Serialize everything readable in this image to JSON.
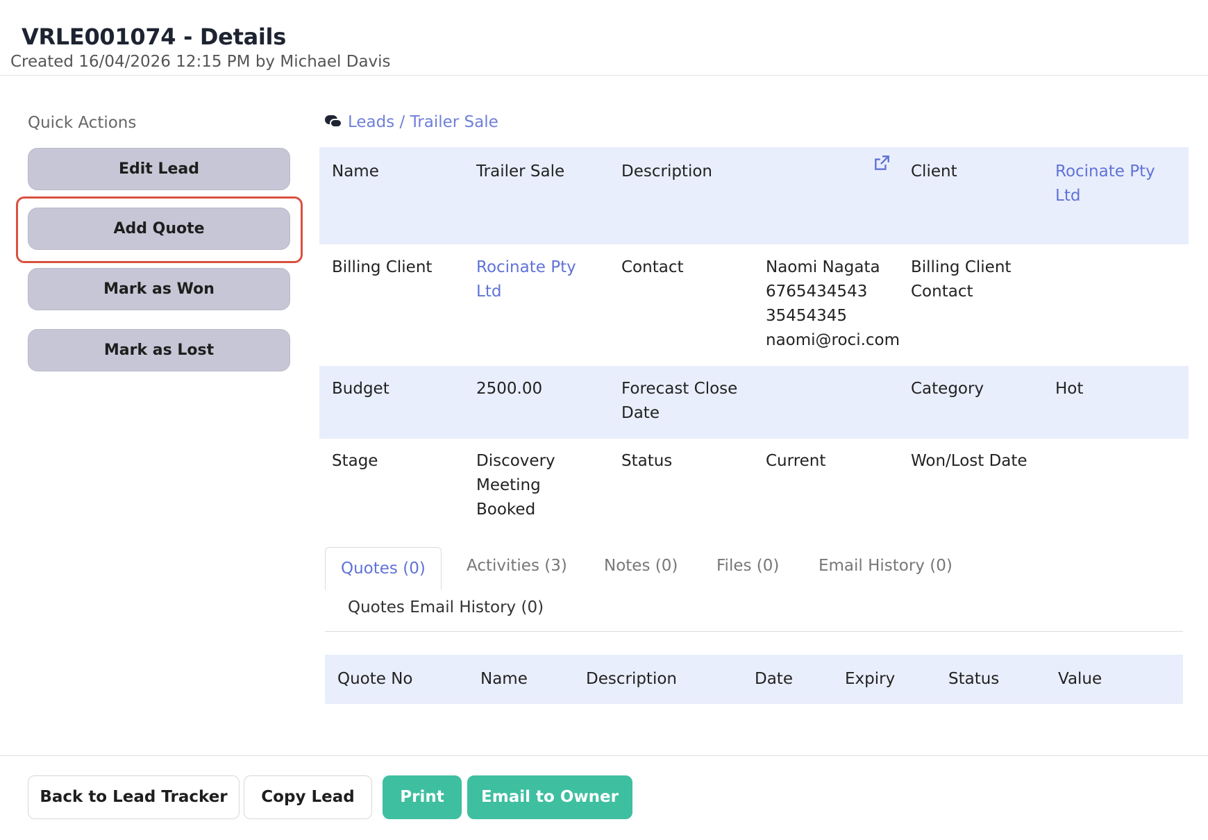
{
  "header": {
    "title": "VRLE001074 - Details",
    "subtitle": "Created 16/04/2026 12:15 PM by Michael Davis"
  },
  "quick_actions": {
    "heading": "Quick Actions",
    "buttons": [
      "Edit Lead",
      "Add Quote",
      "Mark as Won",
      "Mark as Lost"
    ],
    "highlighted": "Add Quote"
  },
  "breadcrumb": {
    "icon": "comments-icon",
    "text": "Leads / Trailer Sale"
  },
  "details": {
    "name_label": "Name",
    "name_value": "Trailer Sale",
    "description_label": "Description",
    "client_label": "Client",
    "client_value": "Rocinate Pty Ltd",
    "billing_client_label": "Billing Client",
    "billing_client_value": "Rocinate Pty Ltd",
    "contact_label": "Contact",
    "contact_name": "Naomi Nagata",
    "contact_phone1": "6765434543",
    "contact_phone2": "35454345",
    "contact_email": "naomi@roci.com",
    "billing_contact_label": "Billing Client Contact",
    "budget_label": "Budget",
    "budget_value": "2500.00",
    "forecast_label": "Forecast Close Date",
    "category_label": "Category",
    "category_value": "Hot",
    "stage_label": "Stage",
    "stage_value": "Discovery Meeting Booked",
    "status_label": "Status",
    "status_value": "Current",
    "wonlost_label": "Won/Lost Date"
  },
  "tabs": {
    "items": [
      "Quotes (0)",
      "Activities (3)",
      "Notes (0)",
      "Files (0)",
      "Email History (0)",
      "Quotes Email History (0)"
    ],
    "active": "Quotes (0)"
  },
  "quotes_table": {
    "columns": [
      "Quote No",
      "Name",
      "Description",
      "Date",
      "Expiry",
      "Status",
      "Value"
    ]
  },
  "footer": {
    "buttons": [
      "Back to Lead Tracker",
      "Copy Lead",
      "Print",
      "Email to Owner"
    ]
  },
  "colors": {
    "link": "#6073d6",
    "accent_green": "#3ebfa0",
    "highlight_red": "#d9513f",
    "row_shade": "#e9eefc",
    "quick_action_bg": "#c6c6d6"
  }
}
